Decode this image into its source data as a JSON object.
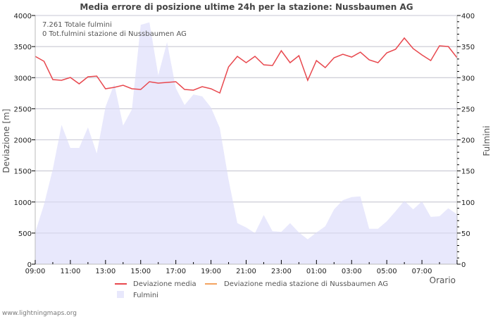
{
  "chart_data": {
    "type": "line+area",
    "title": "Media errore di posizione ultime 24h per la stazione: Nussbaumen AG",
    "xlabel": "Orario",
    "ylabel": "Deviazione  [m]",
    "ylabel_right": "Fulmini",
    "ylim": [
      0,
      4000
    ],
    "ylim_right": [
      0,
      400
    ],
    "y_ticks": [
      "0",
      "500",
      "1000",
      "1500",
      "2000",
      "2500",
      "3000",
      "3500",
      "4000"
    ],
    "y_ticks_right": [
      "0",
      "50",
      "100",
      "150",
      "200",
      "250",
      "300",
      "350",
      "400"
    ],
    "x_ticks": [
      "09:00",
      "11:00",
      "13:00",
      "15:00",
      "17:00",
      "19:00",
      "21:00",
      "23:00",
      "01:00",
      "03:00",
      "05:00",
      "07:00"
    ],
    "grid": true,
    "legend_position": "bottom",
    "x_interval_minutes": 30,
    "series": [
      {
        "name": "Deviazione media",
        "type": "line",
        "axis": "left",
        "color": "#e8484e",
        "values": [
          3343,
          3263,
          2969,
          2958,
          3003,
          2901,
          3014,
          3025,
          2821,
          2844,
          2878,
          2821,
          2810,
          2935,
          2912,
          2924,
          2935,
          2810,
          2799,
          2856,
          2821,
          2753,
          3173,
          3343,
          3241,
          3343,
          3207,
          3195,
          3433,
          3241,
          3354,
          2958,
          3275,
          3161,
          3320,
          3377,
          3331,
          3411,
          3286,
          3241,
          3399,
          3456,
          3637,
          3467,
          3365,
          3275,
          3513,
          3501,
          3320
        ]
      },
      {
        "name": "Deviazione media stazione di Nussbaumen AG",
        "type": "line",
        "axis": "left",
        "color": "#f4a460",
        "values": []
      },
      {
        "name": "Fulmini",
        "type": "area",
        "axis": "right",
        "color": "#e8e8fc",
        "values": [
          51,
          96,
          153,
          224,
          187,
          187,
          220,
          178,
          253,
          290,
          223,
          249,
          385,
          389,
          304,
          357,
          283,
          256,
          273,
          270,
          252,
          219,
          136,
          66,
          59,
          50,
          79,
          53,
          52,
          66,
          51,
          40,
          51,
          61,
          88,
          103,
          108,
          109,
          57,
          57,
          69,
          85,
          102,
          88,
          101,
          76,
          77,
          90,
          80
        ]
      }
    ],
    "annotations": [
      "7.261 Totale fulmini",
      "0 Tot.fulmini stazione di Nussbaumen AG"
    ]
  },
  "info": {
    "line1": "7.261 Totale fulmini",
    "line2": "0 Tot.fulmini stazione di Nussbaumen AG"
  },
  "legend": {
    "item1": "Deviazione media",
    "item2": "Deviazione media stazione di Nussbaumen AG",
    "item3": "Fulmini"
  },
  "credit": "www.lightningmaps.org"
}
